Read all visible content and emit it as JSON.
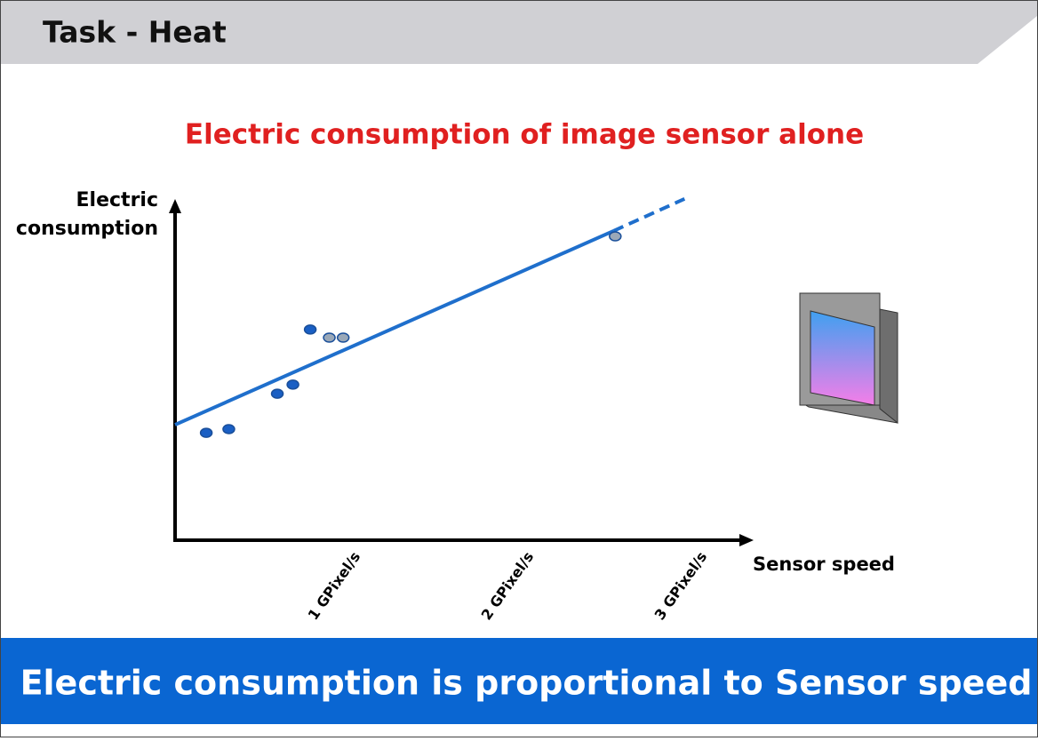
{
  "header": {
    "title": "Task - Heat"
  },
  "chart_data": {
    "type": "scatter",
    "title": "Electric consumption of image sensor alone",
    "ylabel_lines": [
      "Electric",
      "consumption"
    ],
    "xlabel": "Sensor speed",
    "xlim": [
      0,
      3.32
    ],
    "ylim": [
      0,
      105
    ],
    "xticks": [
      {
        "value": 1,
        "label": "1 GPixel/s"
      },
      {
        "value": 2,
        "label": "2 GPixel/s"
      },
      {
        "value": 3,
        "label": "3 GPixel/s"
      }
    ],
    "series": [
      {
        "color": "#1a5fc4",
        "x": [
          0.18,
          0.31,
          0.59,
          0.68,
          0.78
        ],
        "values": [
          31.8,
          32.9,
          43.4,
          46.1,
          62.4
        ]
      },
      {
        "color": "#9aa8b8",
        "x": [
          0.89,
          0.97,
          2.54
        ],
        "values": [
          60.0,
          60.0,
          90.0
        ]
      }
    ],
    "trend": {
      "color": "#1f6fcc",
      "x": [
        0,
        2.53
      ],
      "values": [
        34.2,
        91.6
      ]
    },
    "trend_extension": {
      "color": "#1f6fcc",
      "dashed": true,
      "x": [
        2.53,
        2.94
      ],
      "values": [
        91.6,
        101.1
      ]
    }
  },
  "footer": {
    "text": "Electric consumption is proportional to Sensor speed"
  }
}
